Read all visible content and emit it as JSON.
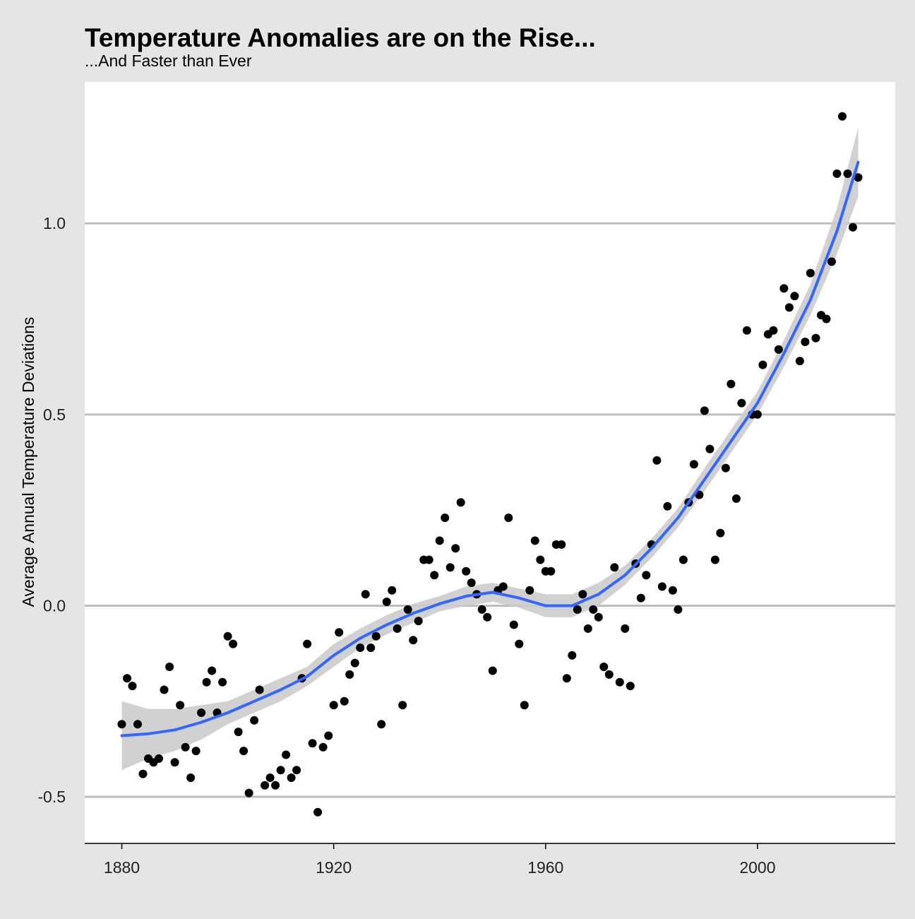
{
  "chart_data": {
    "type": "scatter",
    "title": "Temperature Anomalies are on the Rise...",
    "subtitle": "...And Faster than Ever",
    "xlabel": "",
    "ylabel": "Average Annual Temperature Deviations",
    "xlim": [
      1873,
      2026
    ],
    "ylim": [
      -0.62,
      1.37
    ],
    "x_ticks": [
      1880,
      1920,
      1960,
      2000
    ],
    "x_tick_labels": [
      "1880",
      "1920",
      "1960",
      "2000"
    ],
    "y_ticks": [
      -0.5,
      0.0,
      0.5,
      1.0
    ],
    "y_tick_labels": [
      "-0.5",
      "0.0",
      "0.5",
      "1.0"
    ],
    "grid": "horizontal",
    "legend": "none",
    "points": {
      "x": [
        1880,
        1881,
        1882,
        1883,
        1884,
        1885,
        1886,
        1887,
        1888,
        1889,
        1890,
        1891,
        1892,
        1893,
        1894,
        1895,
        1896,
        1897,
        1898,
        1899,
        1900,
        1901,
        1902,
        1903,
        1904,
        1905,
        1906,
        1907,
        1908,
        1909,
        1910,
        1911,
        1912,
        1913,
        1914,
        1915,
        1916,
        1917,
        1918,
        1919,
        1920,
        1921,
        1922,
        1923,
        1924,
        1925,
        1926,
        1927,
        1928,
        1929,
        1930,
        1931,
        1932,
        1933,
        1934,
        1935,
        1936,
        1937,
        1938,
        1939,
        1940,
        1941,
        1942,
        1943,
        1944,
        1945,
        1946,
        1947,
        1948,
        1949,
        1950,
        1951,
        1952,
        1953,
        1954,
        1955,
        1956,
        1957,
        1958,
        1959,
        1960,
        1961,
        1962,
        1963,
        1964,
        1965,
        1966,
        1967,
        1968,
        1969,
        1970,
        1971,
        1972,
        1973,
        1974,
        1975,
        1976,
        1977,
        1978,
        1979,
        1980,
        1981,
        1982,
        1983,
        1984,
        1985,
        1986,
        1987,
        1988,
        1989,
        1990,
        1991,
        1992,
        1993,
        1994,
        1995,
        1996,
        1997,
        1998,
        1999,
        2000,
        2001,
        2002,
        2003,
        2004,
        2005,
        2006,
        2007,
        2008,
        2009,
        2010,
        2011,
        2012,
        2013,
        2014,
        2015,
        2016,
        2017,
        2018,
        2019
      ],
      "y": [
        -0.31,
        -0.19,
        -0.21,
        -0.31,
        -0.44,
        -0.4,
        -0.41,
        -0.4,
        -0.22,
        -0.16,
        -0.41,
        -0.26,
        -0.37,
        -0.45,
        -0.38,
        -0.28,
        -0.2,
        -0.17,
        -0.28,
        -0.2,
        -0.08,
        -0.1,
        -0.33,
        -0.38,
        -0.49,
        -0.3,
        -0.22,
        -0.47,
        -0.45,
        -0.47,
        -0.43,
        -0.39,
        -0.45,
        -0.43,
        -0.19,
        -0.1,
        -0.36,
        -0.54,
        -0.37,
        -0.34,
        -0.26,
        -0.07,
        -0.25,
        -0.18,
        -0.15,
        -0.11,
        0.03,
        -0.11,
        -0.08,
        -0.31,
        0.01,
        0.04,
        -0.06,
        -0.26,
        -0.01,
        -0.09,
        -0.04,
        0.12,
        0.12,
        0.08,
        0.17,
        0.23,
        0.1,
        0.15,
        0.27,
        0.09,
        0.06,
        0.03,
        -0.01,
        -0.03,
        -0.17,
        0.04,
        0.05,
        0.23,
        -0.05,
        -0.1,
        -0.26,
        0.04,
        0.17,
        0.12,
        0.09,
        0.09,
        0.16,
        0.16,
        -0.19,
        -0.13,
        -0.01,
        0.03,
        -0.06,
        -0.01,
        -0.03,
        -0.16,
        -0.18,
        0.1,
        -0.2,
        -0.06,
        -0.21,
        0.11,
        0.02,
        0.08,
        0.16,
        0.38,
        0.05,
        0.26,
        0.04,
        -0.01,
        0.12,
        0.27,
        0.37,
        0.29,
        0.51,
        0.41,
        0.12,
        0.19,
        0.36,
        0.58,
        0.28,
        0.53,
        0.72,
        0.5,
        0.5,
        0.63,
        0.71,
        0.72,
        0.67,
        0.83,
        0.78,
        0.81,
        0.64,
        0.69,
        0.87,
        0.7,
        0.76,
        0.75,
        0.9,
        1.13,
        1.28,
        1.13,
        0.99,
        1.12
      ]
    },
    "smooth": {
      "name": "",
      "color": "#3366ff",
      "x": [
        1880,
        1885,
        1890,
        1895,
        1900,
        1905,
        1910,
        1915,
        1920,
        1925,
        1930,
        1935,
        1940,
        1945,
        1950,
        1955,
        1960,
        1965,
        1970,
        1975,
        1980,
        1985,
        1990,
        1995,
        2000,
        2005,
        2010,
        2015,
        2019
      ],
      "y": [
        -0.34,
        -0.335,
        -0.325,
        -0.305,
        -0.28,
        -0.25,
        -0.22,
        -0.185,
        -0.13,
        -0.085,
        -0.05,
        -0.02,
        0.005,
        0.025,
        0.035,
        0.02,
        0.0,
        0.0,
        0.03,
        0.08,
        0.15,
        0.23,
        0.33,
        0.43,
        0.53,
        0.66,
        0.8,
        0.98,
        1.16
      ],
      "lower": [
        -0.43,
        -0.4,
        -0.38,
        -0.35,
        -0.31,
        -0.28,
        -0.25,
        -0.21,
        -0.16,
        -0.11,
        -0.075,
        -0.045,
        -0.015,
        0.0,
        0.01,
        -0.005,
        -0.03,
        -0.03,
        0.0,
        0.055,
        0.125,
        0.205,
        0.3,
        0.4,
        0.5,
        0.625,
        0.76,
        0.92,
        1.07
      ],
      "upper": [
        -0.25,
        -0.27,
        -0.27,
        -0.26,
        -0.25,
        -0.22,
        -0.19,
        -0.16,
        -0.1,
        -0.06,
        -0.025,
        0.005,
        0.025,
        0.05,
        0.06,
        0.045,
        0.03,
        0.03,
        0.06,
        0.105,
        0.175,
        0.255,
        0.36,
        0.46,
        0.56,
        0.695,
        0.84,
        1.04,
        1.25
      ]
    },
    "colors": {
      "panel_background": "#ffffff",
      "plot_background": "#e5e5e5",
      "gridline": "#bebebe",
      "points": "#000000",
      "ribbon": "#cccccc"
    }
  }
}
